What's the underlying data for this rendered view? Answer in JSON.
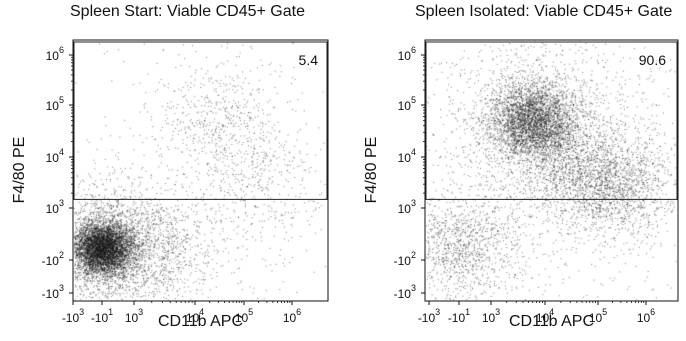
{
  "chart_data": [
    {
      "type": "scatter",
      "title": "Spleen Start: Viable CD45+ Gate",
      "xlabel": "CD11b APC",
      "ylabel": "F4/80 PE",
      "x_scale": "biexponential",
      "y_scale": "biexponential",
      "x_ticks": [
        {
          "base": "-10",
          "exp": "3"
        },
        {
          "base": "-10",
          "exp": "1"
        },
        {
          "base": "10",
          "exp": "3"
        },
        {
          "base": "10",
          "exp": "4"
        },
        {
          "base": "10",
          "exp": "5"
        },
        {
          "base": "10",
          "exp": "6"
        }
      ],
      "y_ticks": [
        {
          "base": "10",
          "exp": "6"
        },
        {
          "base": "10",
          "exp": "5"
        },
        {
          "base": "10",
          "exp": "4"
        },
        {
          "base": "10",
          "exp": "3"
        },
        {
          "base": "-10",
          "exp": "2"
        },
        {
          "base": "-10",
          "exp": "3"
        }
      ],
      "gate": {
        "y_threshold": 1500,
        "percent_label": "5.4"
      },
      "populations": [
        {
          "x": 0,
          "y": 0,
          "weight": 0.78
        },
        {
          "x": 3000,
          "y": 0,
          "weight": 0.1
        },
        {
          "x": 200000,
          "y": 3000,
          "weight": 0.05
        },
        {
          "x": 30000,
          "y": 50000,
          "weight": 0.07
        }
      ]
    },
    {
      "type": "scatter",
      "title": "Spleen Isolated: Viable CD45+ Gate",
      "xlabel": "CD11b APC",
      "ylabel": "F4/80 PE",
      "x_scale": "biexponential",
      "y_scale": "biexponential",
      "x_ticks": [
        {
          "base": "-10",
          "exp": "3"
        },
        {
          "base": "-10",
          "exp": "1"
        },
        {
          "base": "10",
          "exp": "3"
        },
        {
          "base": "10",
          "exp": "4"
        },
        {
          "base": "10",
          "exp": "5"
        },
        {
          "base": "10",
          "exp": "6"
        }
      ],
      "y_ticks": [
        {
          "base": "10",
          "exp": "6"
        },
        {
          "base": "10",
          "exp": "5"
        },
        {
          "base": "10",
          "exp": "4"
        },
        {
          "base": "10",
          "exp": "3"
        },
        {
          "base": "-10",
          "exp": "2"
        },
        {
          "base": "-10",
          "exp": "3"
        }
      ],
      "gate": {
        "y_threshold": 1500,
        "percent_label": "90.6"
      },
      "populations": [
        {
          "x": 6000,
          "y": 50000,
          "weight": 0.5
        },
        {
          "x": 200000,
          "y": 3000,
          "weight": 0.22
        },
        {
          "x": 0,
          "y": 0,
          "weight": 0.16
        },
        {
          "x": 20000,
          "y": 8000,
          "weight": 0.12
        }
      ]
    }
  ]
}
